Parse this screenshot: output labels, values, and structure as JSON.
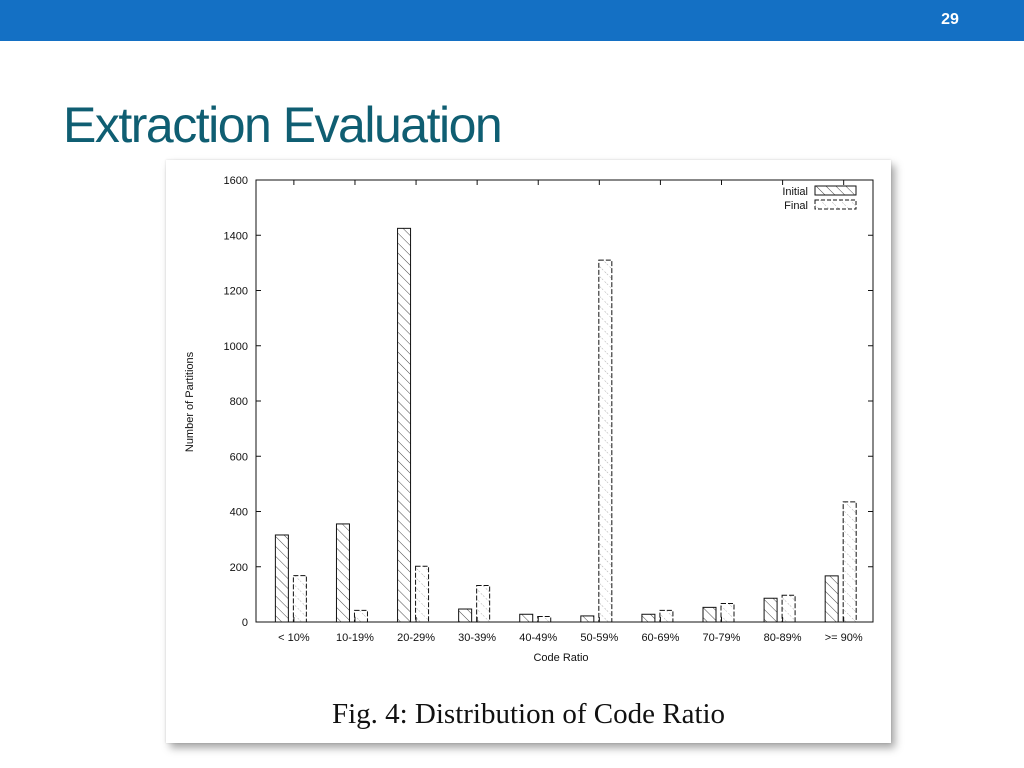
{
  "slide": {
    "page_number": "29",
    "title": "Extraction Evaluation",
    "caption": "Fig. 4: Distribution of Code Ratio"
  },
  "colors": {
    "top_bar": "#1470c4",
    "title": "#0f5e72"
  },
  "chart_data": {
    "type": "bar",
    "title": "",
    "xlabel": "Code Ratio",
    "ylabel": "Number of Partitions",
    "ylim": [
      0,
      1600
    ],
    "yticks": [
      0,
      200,
      400,
      600,
      800,
      1000,
      1200,
      1400,
      1600
    ],
    "categories": [
      "< 10%",
      "10-19%",
      "20-29%",
      "30-39%",
      "40-49%",
      "50-59%",
      "60-69%",
      "70-79%",
      "80-89%",
      ">= 90%"
    ],
    "series": [
      {
        "name": "Initial",
        "pattern": "diagonal-hatch",
        "values": [
          315,
          355,
          1425,
          47,
          28,
          22,
          28,
          53,
          86,
          167
        ]
      },
      {
        "name": "Final",
        "pattern": "dashed-outline-hatch",
        "values": [
          168,
          42,
          202,
          132,
          20,
          1310,
          42,
          67,
          97,
          435
        ]
      }
    ],
    "legend_position": "top-right",
    "grid": false
  }
}
